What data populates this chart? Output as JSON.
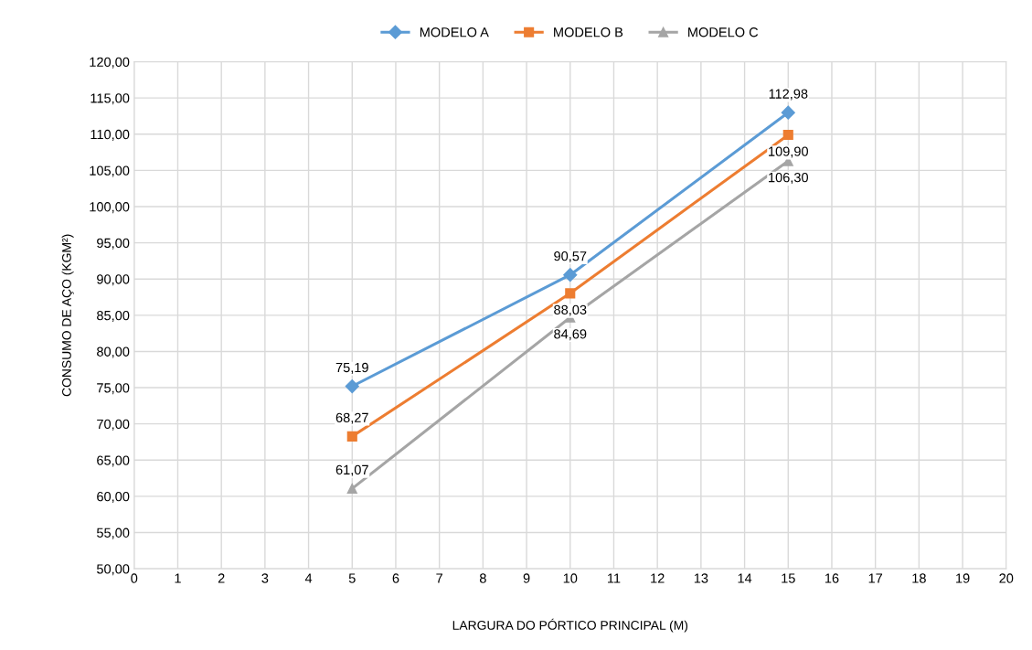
{
  "chart_data": {
    "type": "line",
    "xlabel": "LARGURA DO PÓRTICO PRINCIPAL (M)",
    "ylabel": "CONSUMO DE AÇO (KGM²)",
    "x": [
      5,
      10,
      15
    ],
    "series": [
      {
        "name": "MODELO A",
        "color": "#5b9bd5",
        "marker": "diamond",
        "values": [
          75.19,
          90.57,
          112.98
        ],
        "value_labels": [
          "75,19",
          "90,57",
          "112,98"
        ]
      },
      {
        "name": "MODELO B",
        "color": "#ed7d31",
        "marker": "square",
        "values": [
          68.27,
          88.03,
          109.9
        ],
        "value_labels": [
          "68,27",
          "88,03",
          "109,90"
        ]
      },
      {
        "name": "MODELO C",
        "color": "#a5a5a5",
        "marker": "triangle",
        "values": [
          61.07,
          84.69,
          106.3
        ],
        "value_labels": [
          "61,07",
          "84,69",
          "106,30"
        ]
      }
    ],
    "xlim": [
      0,
      20
    ],
    "xticks": [
      0,
      1,
      2,
      3,
      4,
      5,
      6,
      7,
      8,
      9,
      10,
      11,
      12,
      13,
      14,
      15,
      16,
      17,
      18,
      19,
      20
    ],
    "ylim": [
      50,
      120
    ],
    "yticks": [
      {
        "value": 50,
        "label": "50,00"
      },
      {
        "value": 55,
        "label": "55,00"
      },
      {
        "value": 60,
        "label": "60,00"
      },
      {
        "value": 65,
        "label": "65,00"
      },
      {
        "value": 70,
        "label": "70,00"
      },
      {
        "value": 75,
        "label": "75,00"
      },
      {
        "value": 80,
        "label": "80,00"
      },
      {
        "value": 85,
        "label": "85,00"
      },
      {
        "value": 90,
        "label": "90,00"
      },
      {
        "value": 95,
        "label": "95,00"
      },
      {
        "value": 100,
        "label": "100,00"
      },
      {
        "value": 105,
        "label": "105,00"
      },
      {
        "value": 110,
        "label": "110,00"
      },
      {
        "value": 115,
        "label": "115,00"
      },
      {
        "value": 120,
        "label": "120,00"
      }
    ],
    "grid": true,
    "legend": "top",
    "line_style": "solid"
  }
}
